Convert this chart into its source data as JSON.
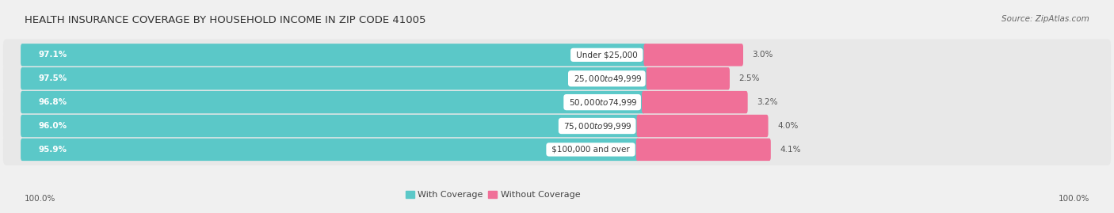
{
  "title": "HEALTH INSURANCE COVERAGE BY HOUSEHOLD INCOME IN ZIP CODE 41005",
  "source": "Source: ZipAtlas.com",
  "categories": [
    "Under $25,000",
    "$25,000 to $49,999",
    "$50,000 to $74,999",
    "$75,000 to $99,999",
    "$100,000 and over"
  ],
  "with_coverage": [
    97.1,
    97.5,
    96.8,
    96.0,
    95.9
  ],
  "without_coverage": [
    3.0,
    2.5,
    3.2,
    4.0,
    4.1
  ],
  "color_with": "#5bc8c8",
  "color_without": "#f07098",
  "bg_color": "#f0f0f0",
  "bar_bg": "#e8e8e8",
  "title_fontsize": 9.5,
  "source_fontsize": 7.5,
  "label_fontsize": 7.5,
  "legend_fontsize": 8,
  "axis_label_fontsize": 7.5,
  "bar_scale": 0.55,
  "without_scale": 0.12,
  "x_left_label": "100.0%",
  "x_right_label": "100.0%"
}
